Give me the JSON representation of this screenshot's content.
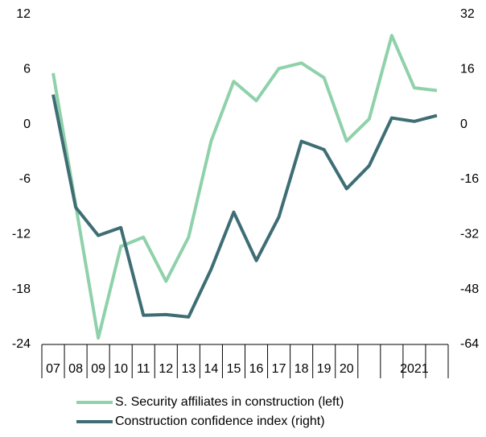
{
  "chart_data": {
    "type": "line",
    "categories": [
      "07",
      "08",
      "09",
      "10",
      "11",
      "12",
      "13",
      "14",
      "15",
      "16",
      "17",
      "18",
      "19",
      "20",
      null,
      null,
      "2021",
      null
    ],
    "series": [
      {
        "name": "S. Security affiliates in construction (left)",
        "color": "#8fd1aa",
        "axis": "y",
        "values": [
          5.6,
          -8.8,
          -23.3,
          -13.3,
          -12.3,
          -17.1,
          -12.3,
          -1.8,
          4.7,
          2.6,
          6.1,
          6.7,
          5.1,
          -1.8,
          0.6,
          9.7,
          4.0,
          3.7
        ]
      },
      {
        "name": "Construction confidence index (right)",
        "color": "#3e6e74",
        "axis": "y2",
        "values": [
          8.7,
          -24.1,
          -32.3,
          -30,
          -55.5,
          -55.3,
          -56,
          -42.1,
          -25.5,
          -39.6,
          -26.9,
          -4.9,
          -7.3,
          -18.7,
          -12,
          1.9,
          0.9,
          2.6
        ]
      }
    ],
    "ylim": [
      -24,
      12
    ],
    "yticks": [
      -24,
      -18,
      -12,
      -6,
      0,
      6,
      12
    ],
    "y2lim": [
      -64,
      32
    ],
    "y2ticks": [
      -64,
      -48,
      -32,
      -16,
      0,
      16,
      32
    ],
    "legend": "bottom"
  }
}
